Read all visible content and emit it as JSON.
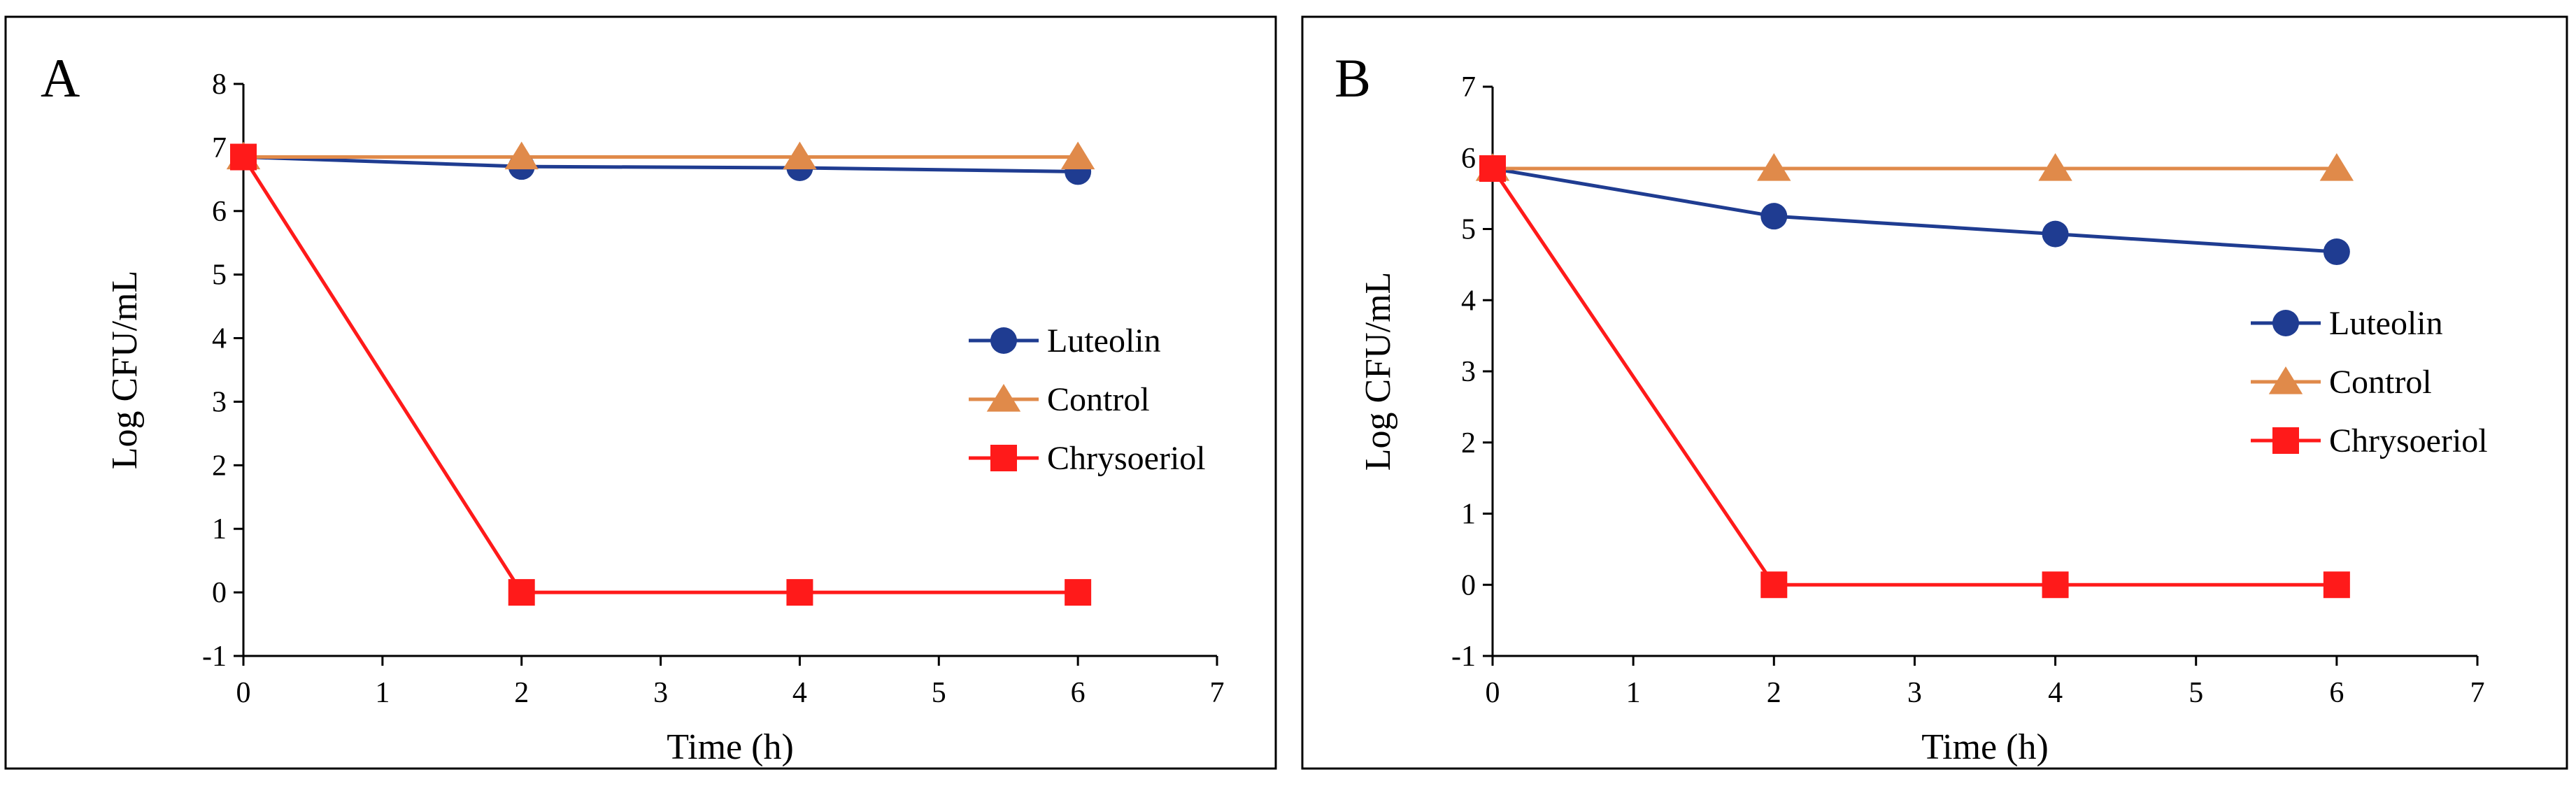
{
  "figure": {
    "panels": [
      "A",
      "B"
    ],
    "colors": {
      "luteolin": "#1f3c91",
      "control": "#e08a4a",
      "chrysoeriol": "#ff1a1a"
    }
  },
  "chart_data": [
    {
      "panel_label": "A",
      "type": "line",
      "xlabel": "Time (h)",
      "ylabel": "Log CFU/mL",
      "xlim": [
        0,
        7
      ],
      "ylim": [
        -1,
        8
      ],
      "xticks": [
        "0",
        "1",
        "2",
        "3",
        "4",
        "5",
        "6",
        "7"
      ],
      "yticks": [
        "-1",
        "0",
        "1",
        "2",
        "3",
        "4",
        "5",
        "6",
        "7",
        "8"
      ],
      "legend_position": "right-middle",
      "x": [
        0,
        2,
        4,
        6
      ],
      "series": [
        {
          "name": "Luteolin",
          "marker": "circle",
          "color": "#1f3c91",
          "values": [
            6.85,
            6.7,
            6.68,
            6.62
          ]
        },
        {
          "name": "Control",
          "marker": "triangle",
          "color": "#e08a4a",
          "values": [
            6.85,
            6.85,
            6.85,
            6.85
          ]
        },
        {
          "name": "Chrysoeriol",
          "marker": "square",
          "color": "#ff1a1a",
          "values": [
            6.85,
            0,
            0,
            0
          ]
        }
      ]
    },
    {
      "panel_label": "B",
      "type": "line",
      "xlabel": "Time (h)",
      "ylabel": "Log CFU/mL",
      "xlim": [
        0,
        7
      ],
      "ylim": [
        -1,
        7
      ],
      "xticks": [
        "0",
        "1",
        "2",
        "3",
        "4",
        "5",
        "6",
        "7"
      ],
      "yticks": [
        "-1",
        "0",
        "1",
        "2",
        "3",
        "4",
        "5",
        "6",
        "7"
      ],
      "legend_position": "right-middle",
      "x": [
        0,
        2,
        4,
        6
      ],
      "series": [
        {
          "name": "Luteolin",
          "marker": "circle",
          "color": "#1f3c91",
          "values": [
            5.85,
            5.18,
            4.93,
            4.68
          ]
        },
        {
          "name": "Control",
          "marker": "triangle",
          "color": "#e08a4a",
          "values": [
            5.85,
            5.85,
            5.85,
            5.85
          ]
        },
        {
          "name": "Chrysoeriol",
          "marker": "square",
          "color": "#ff1a1a",
          "values": [
            5.85,
            0,
            0,
            0
          ]
        }
      ]
    }
  ]
}
